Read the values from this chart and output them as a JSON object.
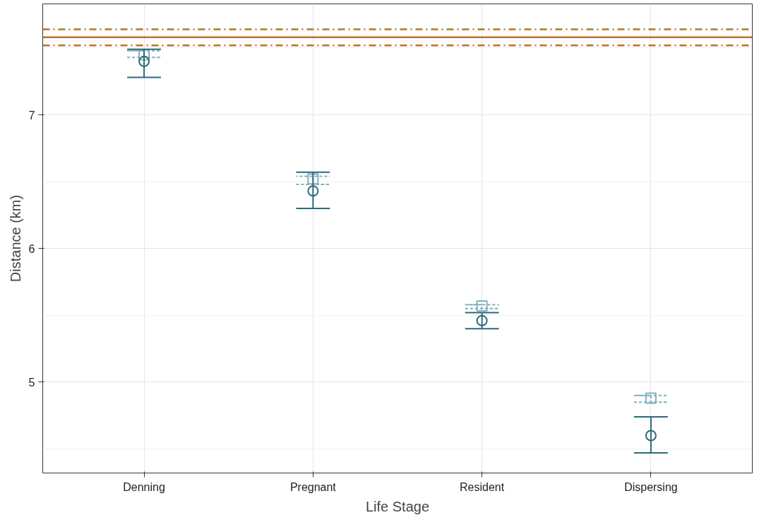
{
  "chart_data": {
    "type": "scatter",
    "xlabel": "Life Stage",
    "ylabel": "Distance (km)",
    "categories": [
      "Denning",
      "Pregnant",
      "Resident",
      "Dispersing"
    ],
    "series": [
      {
        "color": "#7fb0bf",
        "marker": "square",
        "line_style": "dashed",
        "values": [
          7.45,
          6.52,
          5.57,
          4.88
        ],
        "errors": [
          [
            7.43,
            7.48
          ],
          [
            6.48,
            6.54
          ],
          [
            5.55,
            5.58
          ],
          [
            4.85,
            4.9
          ]
        ]
      },
      {
        "color": "#2b6a7c",
        "marker": "circle",
        "line_style": "solid",
        "values": [
          7.4,
          6.43,
          5.46,
          4.6
        ],
        "errors": [
          [
            7.28,
            7.49
          ],
          [
            6.3,
            6.57
          ],
          [
            5.4,
            5.52
          ],
          [
            4.47,
            4.74
          ]
        ]
      }
    ],
    "ylim": [
      4.32,
      7.83
    ],
    "yticks": [
      5,
      6,
      7
    ],
    "grid": true,
    "ref_lines": [
      {
        "axis": "y",
        "value": 7.58,
        "color": "#b8732a",
        "line_style": "solid"
      },
      {
        "axis": "y",
        "value": 7.64,
        "color": "#b8732a",
        "line_style": "dashdot"
      },
      {
        "axis": "y",
        "value": 7.52,
        "color": "#b8732a",
        "line_style": "dashdot"
      }
    ]
  }
}
